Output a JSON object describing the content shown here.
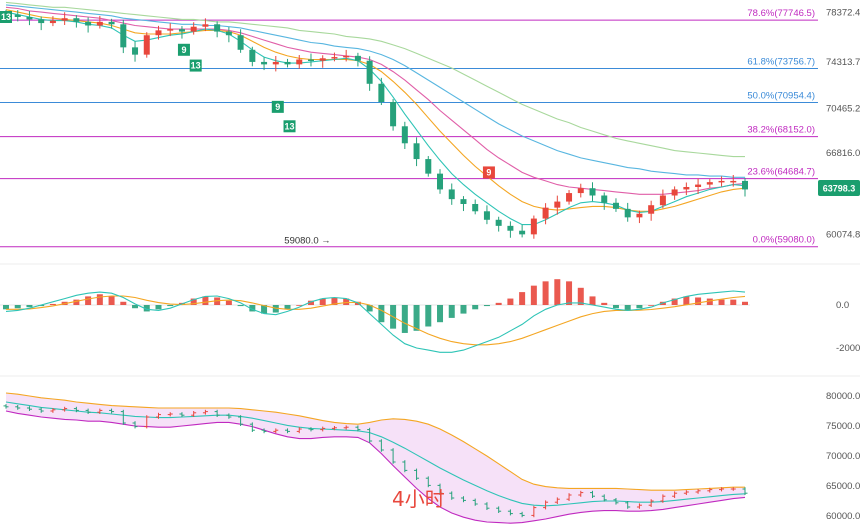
{
  "colors": {
    "up": "#e8473c",
    "down": "#26a17b",
    "fib": "#c02ac0",
    "fib_alt": "#3b8bd8",
    "ma_fast": "#2ec4b6",
    "ma_mid": "#f4a623",
    "ma_slow": "#e05fa8",
    "ma_slower": "#58b6e0",
    "ma_slowest": "#a8d89c",
    "macd_line": "#2ec4b6",
    "signal_line": "#f4a623",
    "boll_upper": "#f4a623",
    "boll_lower": "#c02ac0",
    "boll_mid": "#2ec4b6",
    "boll_fill": "#f5dcf7",
    "price_tag": "#1a9e6e"
  },
  "timeframe_label": "4小时",
  "current_price_tag": "63798.3",
  "low_marker": "59080.0",
  "td_markers": [
    "13",
    "9",
    "13",
    "9",
    "13",
    "9"
  ],
  "chart_data": [
    {
      "type": "line",
      "panel": "price",
      "y_ticks": [
        "78372.4",
        "74313.7",
        "70465.2",
        "66816.0",
        "63798.3",
        "60074.8"
      ],
      "fib_levels": [
        {
          "label": "78.6%(77746.5)",
          "value": 77746.5
        },
        {
          "label": "61.8%(73756.7)",
          "value": 73756.7
        },
        {
          "label": "50.0%(70954.4)",
          "value": 70954.4
        },
        {
          "label": "38.2%(68152.0)",
          "value": 68152.0
        },
        {
          "label": "23.6%(64684.7)",
          "value": 64684.7
        },
        {
          "label": "0.0%(59080.0)",
          "value": 59080.0
        }
      ],
      "close": [
        78200,
        78000,
        77800,
        77500,
        77700,
        77900,
        77600,
        77300,
        77600,
        77400,
        75500,
        74900,
        76500,
        76900,
        77000,
        76800,
        77200,
        77400,
        76800,
        76500,
        75300,
        74300,
        74100,
        74300,
        74100,
        74500,
        74400,
        74600,
        74700,
        74800,
        74400,
        72500,
        71000,
        69000,
        67600,
        66300,
        65100,
        63800,
        63000,
        62600,
        62000,
        61300,
        60800,
        60400,
        60100,
        61400,
        62300,
        62800,
        63500,
        63900,
        63300,
        62700,
        62200,
        61500,
        61800,
        62500,
        63300,
        63800,
        64000,
        64200,
        64400,
        64500,
        64500,
        63800
      ],
      "ma_fast": [
        78400,
        78200,
        78000,
        77800,
        77700,
        77700,
        77600,
        77400,
        77300,
        77100,
        76500,
        76000,
        76100,
        76300,
        76500,
        76600,
        76800,
        77000,
        76900,
        76600,
        76000,
        75300,
        74700,
        74400,
        74200,
        74200,
        74300,
        74400,
        74500,
        74600,
        74400,
        73700,
        72700,
        71400,
        70000,
        68700,
        67400,
        66200,
        65100,
        64200,
        63400,
        62700,
        62000,
        61400,
        60900,
        60900,
        61300,
        61800,
        62300,
        62700,
        62800,
        62700,
        62500,
        62100,
        61900,
        62000,
        62400,
        62800,
        63200,
        63500,
        63800,
        64000,
        64200,
        64100
      ],
      "ma_mid": [
        78600,
        78400,
        78200,
        78000,
        77900,
        77800,
        77700,
        77600,
        77500,
        77300,
        77000,
        76700,
        76600,
        76600,
        76600,
        76700,
        76800,
        76900,
        76900,
        76800,
        76500,
        76000,
        75500,
        75100,
        74800,
        74600,
        74500,
        74500,
        74500,
        74500,
        74400,
        74100,
        73500,
        72700,
        71800,
        70800,
        69700,
        68600,
        67600,
        66600,
        65700,
        64900,
        64100,
        63400,
        62800,
        62400,
        62200,
        62100,
        62200,
        62300,
        62400,
        62400,
        62300,
        62100,
        62000,
        62000,
        62200,
        62400,
        62700,
        63000,
        63300,
        63600,
        63800,
        63900
      ],
      "ma_slow": [
        78800,
        78700,
        78500,
        78400,
        78300,
        78200,
        78100,
        78000,
        77900,
        77700,
        77500,
        77300,
        77200,
        77100,
        77000,
        77000,
        77000,
        77000,
        77000,
        76900,
        76700,
        76400,
        76100,
        75800,
        75500,
        75300,
        75100,
        75000,
        74900,
        74800,
        74700,
        74500,
        74100,
        73500,
        72800,
        72000,
        71200,
        70300,
        69500,
        68700,
        67900,
        67100,
        66400,
        65800,
        65200,
        64800,
        64500,
        64200,
        64000,
        63900,
        63800,
        63700,
        63600,
        63500,
        63400,
        63400,
        63400,
        63500,
        63600,
        63700,
        63900,
        64000,
        64200,
        64300
      ],
      "ma_slower": [
        79000,
        78900,
        78800,
        78700,
        78600,
        78500,
        78400,
        78300,
        78200,
        78100,
        77900,
        77800,
        77700,
        77600,
        77500,
        77400,
        77400,
        77300,
        77300,
        77200,
        77100,
        76900,
        76700,
        76500,
        76300,
        76100,
        75900,
        75800,
        75600,
        75500,
        75400,
        75200,
        74900,
        74500,
        74000,
        73400,
        72800,
        72200,
        71600,
        71000,
        70400,
        69800,
        69200,
        68700,
        68200,
        67800,
        67400,
        67000,
        66700,
        66400,
        66200,
        66000,
        65800,
        65600,
        65500,
        65300,
        65200,
        65100,
        65000,
        65000,
        64900,
        64900,
        64800,
        64800
      ],
      "ma_slowest": [
        79200,
        79100,
        79000,
        78900,
        78800,
        78800,
        78700,
        78600,
        78500,
        78400,
        78300,
        78200,
        78100,
        78000,
        77900,
        77800,
        77800,
        77700,
        77600,
        77600,
        77500,
        77400,
        77300,
        77200,
        77100,
        76900,
        76800,
        76700,
        76600,
        76400,
        76300,
        76200,
        76000,
        75700,
        75400,
        75000,
        74600,
        74200,
        73800,
        73300,
        72800,
        72300,
        71800,
        71300,
        70800,
        70400,
        70000,
        69600,
        69300,
        68900,
        68600,
        68300,
        68000,
        67800,
        67600,
        67400,
        67200,
        67000,
        66900,
        66800,
        66700,
        66600,
        66500,
        66500
      ]
    },
    {
      "type": "bar",
      "panel": "macd",
      "y_ticks": [
        "0.0",
        "-2000.0"
      ],
      "histogram": [
        -200,
        -150,
        -100,
        -50,
        50,
        150,
        250,
        400,
        500,
        400,
        150,
        -150,
        -300,
        -200,
        -50,
        100,
        300,
        400,
        350,
        200,
        -50,
        -300,
        -400,
        -350,
        -200,
        0,
        200,
        300,
        350,
        300,
        150,
        -300,
        -800,
        -1100,
        -1300,
        -1200,
        -1000,
        -800,
        -600,
        -400,
        -200,
        -50,
        100,
        300,
        600,
        900,
        1100,
        1200,
        1100,
        800,
        400,
        100,
        -150,
        -250,
        -150,
        0,
        150,
        300,
        400,
        350,
        300,
        250,
        250,
        150
      ],
      "macd_line": [
        -300,
        -250,
        -150,
        0,
        150,
        300,
        450,
        550,
        600,
        550,
        350,
        50,
        -200,
        -250,
        -150,
        50,
        250,
        400,
        420,
        300,
        100,
        -200,
        -400,
        -450,
        -300,
        -100,
        150,
        300,
        350,
        300,
        100,
        -400,
        -900,
        -1400,
        -1800,
        -2000,
        -2100,
        -2200,
        -2200,
        -2100,
        -1900,
        -1700,
        -1500,
        -1200,
        -900,
        -500,
        -200,
        0,
        100,
        100,
        0,
        -100,
        -200,
        -250,
        -200,
        -100,
        100,
        250,
        400,
        500,
        550,
        600,
        650,
        600
      ],
      "signal_line": [
        -200,
        -200,
        -180,
        -120,
        -40,
        60,
        170,
        280,
        370,
        420,
        420,
        350,
        220,
        110,
        40,
        20,
        60,
        130,
        200,
        230,
        200,
        100,
        -30,
        -150,
        -200,
        -200,
        -150,
        -50,
        50,
        110,
        120,
        0,
        -250,
        -550,
        -850,
        -1100,
        -1350,
        -1550,
        -1700,
        -1800,
        -1850,
        -1850,
        -1800,
        -1700,
        -1550,
        -1350,
        -1150,
        -950,
        -750,
        -550,
        -400,
        -300,
        -250,
        -250,
        -240,
        -210,
        -150,
        -80,
        10,
        100,
        190,
        270,
        350,
        400
      ]
    },
    {
      "type": "line",
      "panel": "bollinger",
      "y_ticks": [
        "80000.0",
        "75000.0",
        "70000.0",
        "65000.0",
        "60000.0"
      ],
      "upper": [
        80500,
        80300,
        80000,
        79700,
        79500,
        79300,
        79000,
        78800,
        78600,
        78400,
        78300,
        78200,
        78100,
        78000,
        78000,
        78000,
        78000,
        78000,
        78000,
        78000,
        77900,
        77700,
        77500,
        77300,
        77000,
        76700,
        76300,
        75900,
        75600,
        75400,
        75300,
        75600,
        76000,
        76200,
        76100,
        75800,
        75300,
        74500,
        73500,
        72400,
        71200,
        70000,
        68700,
        67400,
        66100,
        65300,
        64900,
        64700,
        64600,
        64600,
        64600,
        64600,
        64600,
        64500,
        64400,
        64300,
        64300,
        64300,
        64400,
        64500,
        64600,
        64700,
        64800,
        64800
      ],
      "mid": [
        79000,
        78700,
        78400,
        78100,
        77900,
        77700,
        77500,
        77300,
        77200,
        77000,
        76800,
        76600,
        76500,
        76400,
        76400,
        76500,
        76600,
        76700,
        76800,
        76800,
        76600,
        76300,
        75900,
        75500,
        75100,
        74800,
        74600,
        74500,
        74400,
        74300,
        74200,
        73900,
        73200,
        72300,
        71300,
        70200,
        69100,
        68000,
        67000,
        66000,
        65100,
        64200,
        63400,
        62700,
        62100,
        61800,
        61700,
        61800,
        62000,
        62200,
        62400,
        62500,
        62500,
        62400,
        62300,
        62300,
        62400,
        62600,
        62800,
        63000,
        63200,
        63400,
        63600,
        63700
      ],
      "lower": [
        77500,
        77100,
        76800,
        76500,
        76300,
        76100,
        76000,
        75800,
        75800,
        75600,
        75300,
        75000,
        74900,
        74800,
        74800,
        75000,
        75200,
        75400,
        75600,
        75600,
        75300,
        74900,
        74300,
        73700,
        73200,
        72900,
        72900,
        73100,
        73200,
        73200,
        73100,
        72200,
        70400,
        68400,
        66500,
        64600,
        62900,
        61500,
        60500,
        59800,
        59300,
        59000,
        58900,
        58800,
        58900,
        59200,
        59500,
        59900,
        60300,
        60600,
        60800,
        60900,
        60900,
        60800,
        60800,
        60900,
        61100,
        61400,
        61700,
        62000,
        62300,
        62600,
        62900,
        63100
      ]
    }
  ]
}
